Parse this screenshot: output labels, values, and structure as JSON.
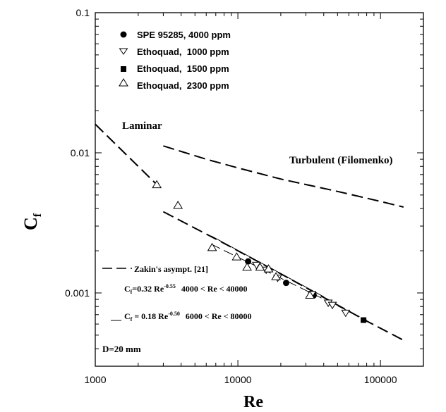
{
  "chart_data": {
    "type": "scatter",
    "xscale": "log",
    "yscale": "log",
    "xlim": [
      1000,
      200000
    ],
    "ylim": [
      0.0003,
      0.1
    ],
    "xlabel": "Re",
    "ylabel": "C",
    "ylabel_sub": "f",
    "x_ticks": [
      {
        "value": 1000,
        "label": "1000"
      },
      {
        "value": 10000,
        "label": "10000"
      },
      {
        "value": 100000,
        "label": "100000"
      }
    ],
    "y_ticks": [
      {
        "value": 0.001,
        "label": "0.001"
      },
      {
        "value": 0.01,
        "label": "0.01"
      },
      {
        "value": 0.1,
        "label": "0.1"
      }
    ],
    "series": [
      {
        "name": "SPE 95285, 4000 ppm",
        "marker": "filled-circle",
        "points": [
          [
            11800,
            0.00168
          ],
          [
            21800,
            0.00118
          ],
          [
            34000,
            0.00096
          ]
        ]
      },
      {
        "name": "Ethoquad,  1000 ppm",
        "marker": "open-triangle-down",
        "points": [
          [
            13500,
            0.00158
          ],
          [
            15800,
            0.00146
          ],
          [
            19000,
            0.00128
          ],
          [
            33000,
            0.00098
          ],
          [
            43000,
            0.00085
          ],
          [
            46000,
            0.00082
          ],
          [
            57000,
            0.00072
          ]
        ]
      },
      {
        "name": "Ethoquad,  1500 ppm",
        "marker": "filled-square",
        "points": [
          [
            76000,
            0.00064
          ]
        ]
      },
      {
        "name": "Ethoquad,  2300 ppm",
        "marker": "open-triangle-up",
        "points": [
          [
            2700,
            0.0059
          ],
          [
            3800,
            0.0042
          ],
          [
            6600,
            0.0021
          ],
          [
            9800,
            0.0018
          ],
          [
            11600,
            0.00152
          ],
          [
            14300,
            0.00152
          ],
          [
            16400,
            0.00148
          ],
          [
            18500,
            0.0013
          ],
          [
            32000,
            0.00096
          ]
        ]
      }
    ],
    "curves": [
      {
        "name": "Laminar",
        "style": "long-dash",
        "points": [
          [
            1000,
            0.016
          ],
          [
            2700,
            0.00593
          ]
        ]
      },
      {
        "name": "Turbulent (Filomenko)",
        "style": "long-dash",
        "points": [
          [
            3000,
            0.0112
          ],
          [
            6000,
            0.009
          ],
          [
            10000,
            0.0078
          ],
          [
            20000,
            0.0065
          ],
          [
            50000,
            0.0053
          ],
          [
            100000,
            0.0045
          ],
          [
            145000,
            0.0041
          ]
        ]
      },
      {
        "name": "Zakin's asympt. [21]",
        "style": "long-dash",
        "points": [
          [
            3000,
            0.0038
          ],
          [
            8000,
            0.00226
          ],
          [
            20000,
            0.00137
          ],
          [
            50000,
            0.00082
          ],
          [
            80000,
            0.00063
          ],
          [
            145000,
            0.00046
          ]
        ]
      },
      {
        "name": "C_f=0.32 Re^-0.55 4000 < Re < 40000",
        "style": "thin-solid",
        "points": [
          [
            6500,
            0.00255
          ],
          [
            40000,
            0.00094
          ]
        ]
      },
      {
        "name": "C_f = 0.18 Re^-0.50 6000 < Re < 80000",
        "style": "thin-dash",
        "points": [
          [
            6500,
            0.00223
          ],
          [
            80000,
            0.00064
          ]
        ]
      }
    ],
    "legend": {
      "position": "top-left"
    },
    "annotations": {
      "laminar": "Laminar",
      "turbulent": "Turbulent (Filomenko)",
      "zakin": "Zakin's asympt. [21]",
      "eq1_lhs": "C",
      "eq1_sub": "f",
      "eq1_rest": "=0.32 Re",
      "eq1_exp": "-0.55",
      "eq1_range": "4000 < Re < 40000",
      "eq2_lhs": "C",
      "eq2_sub": "f",
      "eq2_rest": " = 0.18 Re",
      "eq2_exp": "-0.50",
      "eq2_range": "6000 < Re < 80000",
      "diameter": "D=20 mm"
    },
    "grid": false
  }
}
